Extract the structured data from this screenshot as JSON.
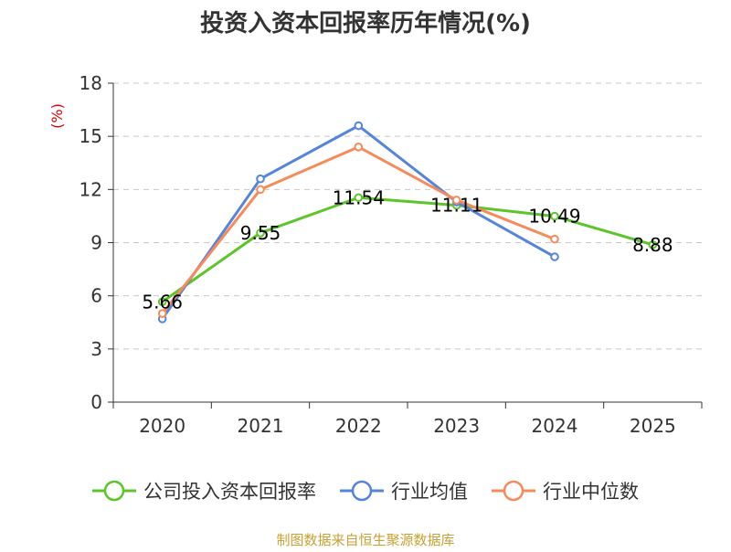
{
  "chart_data": {
    "type": "line",
    "title": "投资入资本回报率历年情况(%)",
    "ylabel": "(%)",
    "xlabel": "",
    "categories": [
      "2020",
      "2021",
      "2022",
      "2023",
      "2024",
      "2025"
    ],
    "ylim": [
      0,
      18
    ],
    "yticks": [
      0,
      3,
      6,
      9,
      12,
      15,
      18
    ],
    "grid": true,
    "legend_position": "bottom",
    "series": [
      {
        "name": "公司投入资本回报率",
        "color": "#5cc52a",
        "values": [
          5.66,
          9.55,
          11.54,
          11.11,
          10.49,
          8.88
        ],
        "labels": [
          "5.66",
          "9.55",
          "11.54",
          "11.11",
          "10.49",
          "8.88"
        ]
      },
      {
        "name": "行业均值",
        "color": "#5584db",
        "values": [
          4.7,
          12.6,
          15.6,
          11.3,
          8.2,
          null
        ]
      },
      {
        "name": "行业中位数",
        "color": "#f58b5b",
        "values": [
          5.0,
          12.0,
          14.4,
          11.4,
          9.2,
          null
        ]
      }
    ],
    "source": "制图数据来自恒生聚源数据库"
  }
}
